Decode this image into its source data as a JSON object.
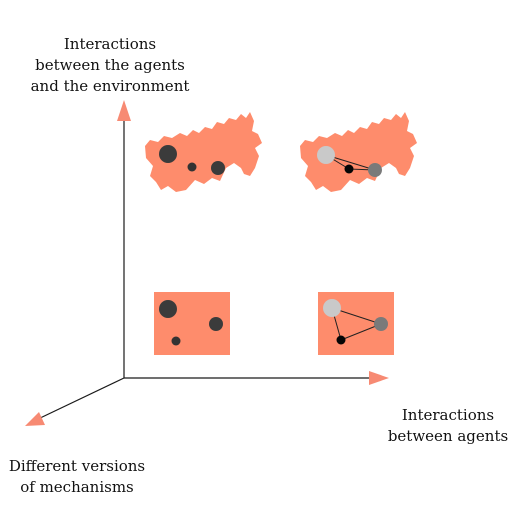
{
  "axes": {
    "y_axis_label": [
      "Interactions",
      "between the agents",
      "and the environment"
    ],
    "x_axis_label": [
      "Interactions",
      "between agents"
    ],
    "z_axis_label": [
      "Different versions",
      "of mechanisms"
    ]
  },
  "panels": [
    {
      "name": "map-no-interaction",
      "kind": "map",
      "links": false
    },
    {
      "name": "map-with-interaction",
      "kind": "map",
      "links": true
    },
    {
      "name": "box-no-interaction",
      "kind": "box",
      "links": false
    },
    {
      "name": "box-with-interaction",
      "kind": "box",
      "links": true
    }
  ],
  "colors": {
    "panel": "#fe8c6c",
    "axis": "#1a1a1a",
    "arrow": "#f78a73",
    "agent_large_dark": "#3b3b3b",
    "agent_small_dark": "#333333",
    "agent_light": "#c9c9c9",
    "agent_black": "#050505",
    "agent_gray": "#7a7a7a"
  }
}
